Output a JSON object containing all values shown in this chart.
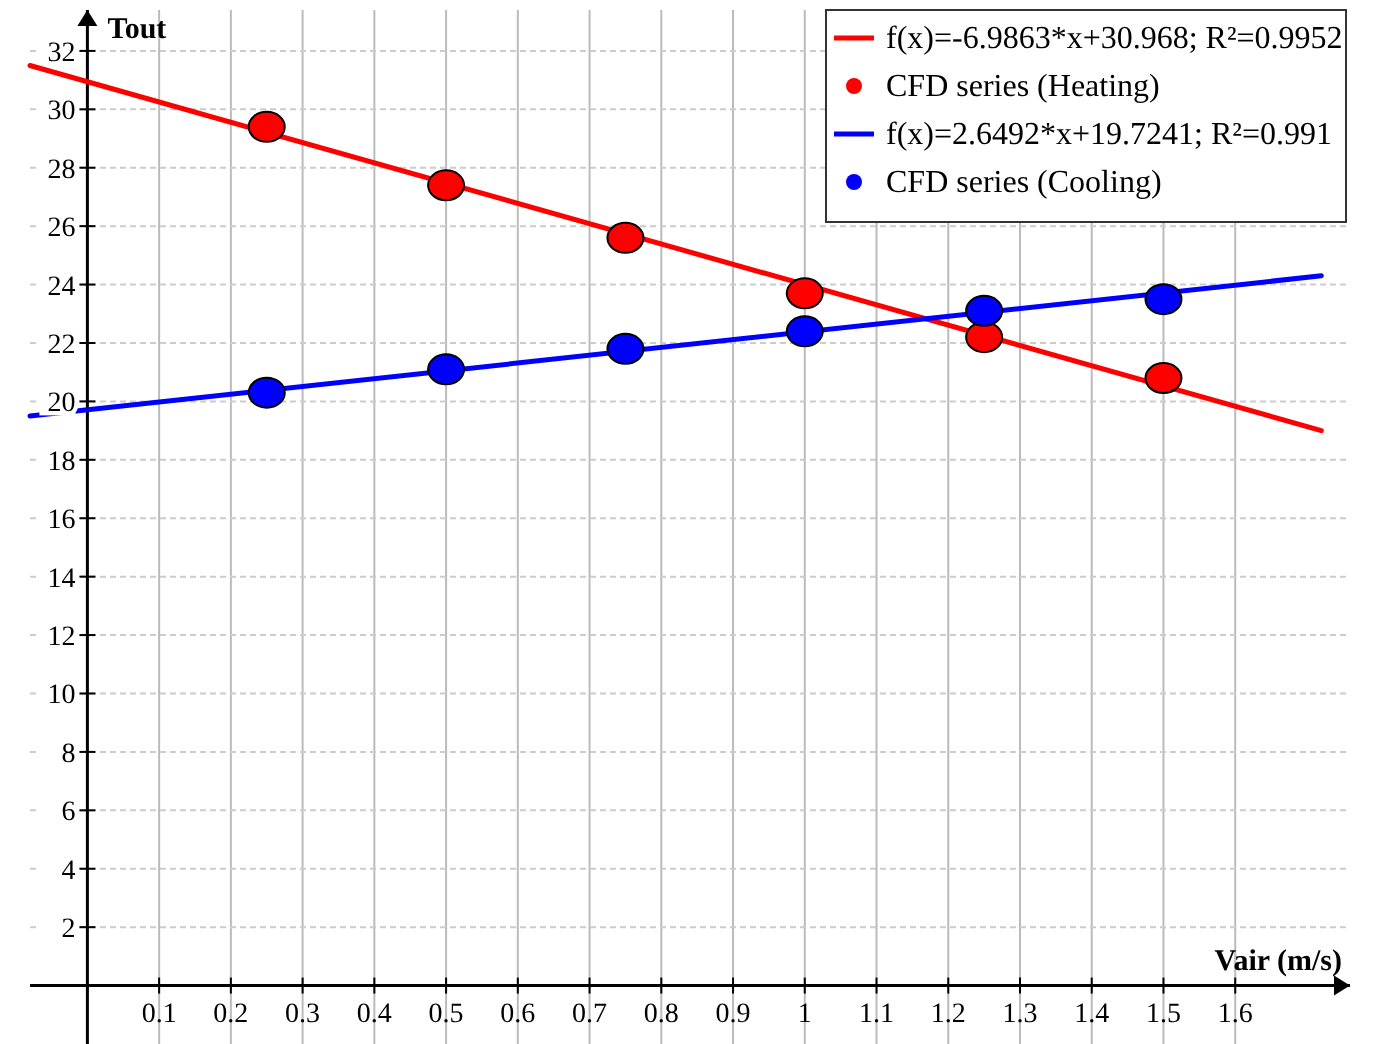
{
  "chart_data": {
    "type": "scatter",
    "xlabel": "Vair (m/s)",
    "ylabel": "Tout",
    "xlim": [
      -0.08,
      1.76
    ],
    "ylim": [
      -2,
      33.4
    ],
    "xticks": [
      0.1,
      0.2,
      0.3,
      0.4,
      0.5,
      0.6,
      0.7,
      0.8,
      0.9,
      1,
      1.1,
      1.2,
      1.3,
      1.4,
      1.5,
      1.6
    ],
    "yticks": [
      2,
      4,
      6,
      8,
      10,
      12,
      14,
      16,
      18,
      20,
      22,
      24,
      26,
      28,
      30,
      32
    ],
    "grid": true,
    "legend": "top right",
    "marker": "circle",
    "series": [
      {
        "type": "line",
        "name": "f(x)=-6.9863*x+30.968; R²=0.9952",
        "color": "#ff0000",
        "x": [
          -0.08,
          1.72
        ],
        "values": [
          31.5,
          19.0
        ],
        "line_style": "solid",
        "marker": "none"
      },
      {
        "name": "CFD series (Heating)",
        "color": "#ff0000",
        "x": [
          0.25,
          0.5,
          0.75,
          1,
          1.25,
          1.5
        ],
        "values": [
          29.4,
          27.4,
          25.6,
          23.7,
          22.2,
          20.8
        ]
      },
      {
        "type": "line",
        "name": "f(x)=2.6492*x+19.7241; R²=0.991",
        "color": "#0000ff",
        "x": [
          -0.08,
          1.72
        ],
        "values": [
          19.5,
          24.3
        ],
        "line_style": "solid",
        "marker": "none"
      },
      {
        "name": "CFD series (Cooling)",
        "color": "#0000ff",
        "x": [
          0.25,
          0.5,
          0.75,
          1,
          1.25,
          1.5
        ],
        "values": [
          20.3,
          21.1,
          21.8,
          22.4,
          23.1,
          23.5
        ]
      }
    ]
  }
}
